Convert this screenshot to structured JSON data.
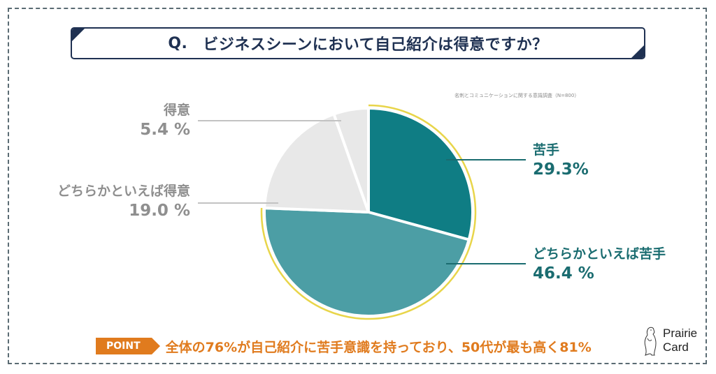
{
  "header": {
    "q_prefix": "Q.",
    "question": "ビジネスシーンにおいて自己紹介は得意ですか？"
  },
  "source_note": "名刺とコミュニケーションに関する意識調査（N=800）",
  "colors": {
    "frame": "#5a6b73",
    "title": "#1f3152",
    "teal_dark": "#0f7d84",
    "teal_light": "#4c9ea5",
    "gray_slice": "#e8e8e8",
    "outline": "#e8d54a",
    "label_teal": "#1a6c70",
    "label_gray": "#8f8f8f",
    "accent_orange": "#e07b1e"
  },
  "chart_data": {
    "type": "pie",
    "title": "ビジネスシーンにおいて自己紹介は得意ですか？",
    "start_angle": "12 o'clock, clockwise",
    "slices": [
      {
        "label": "苦手",
        "value": 29.3,
        "display": "29.3%",
        "color": "#0f7d84"
      },
      {
        "label": "どちらかといえば苦手",
        "value": 46.4,
        "display": "46.4 %",
        "color": "#4c9ea5"
      },
      {
        "label": "どちらかといえば得意",
        "value": 19.0,
        "display": "19.0 %",
        "color": "#e8e8e8"
      },
      {
        "label": "得意",
        "value": 5.4,
        "display": "5.4 %",
        "color": "#e8e8e8"
      }
    ]
  },
  "point": {
    "badge": "POINT",
    "text": "全体の76%が自己紹介に苦手意識を持っており、50代が最も高く81%"
  },
  "logo": {
    "line1": "Prairie",
    "line2": "Card",
    "icon": "prairie-dog-icon"
  }
}
